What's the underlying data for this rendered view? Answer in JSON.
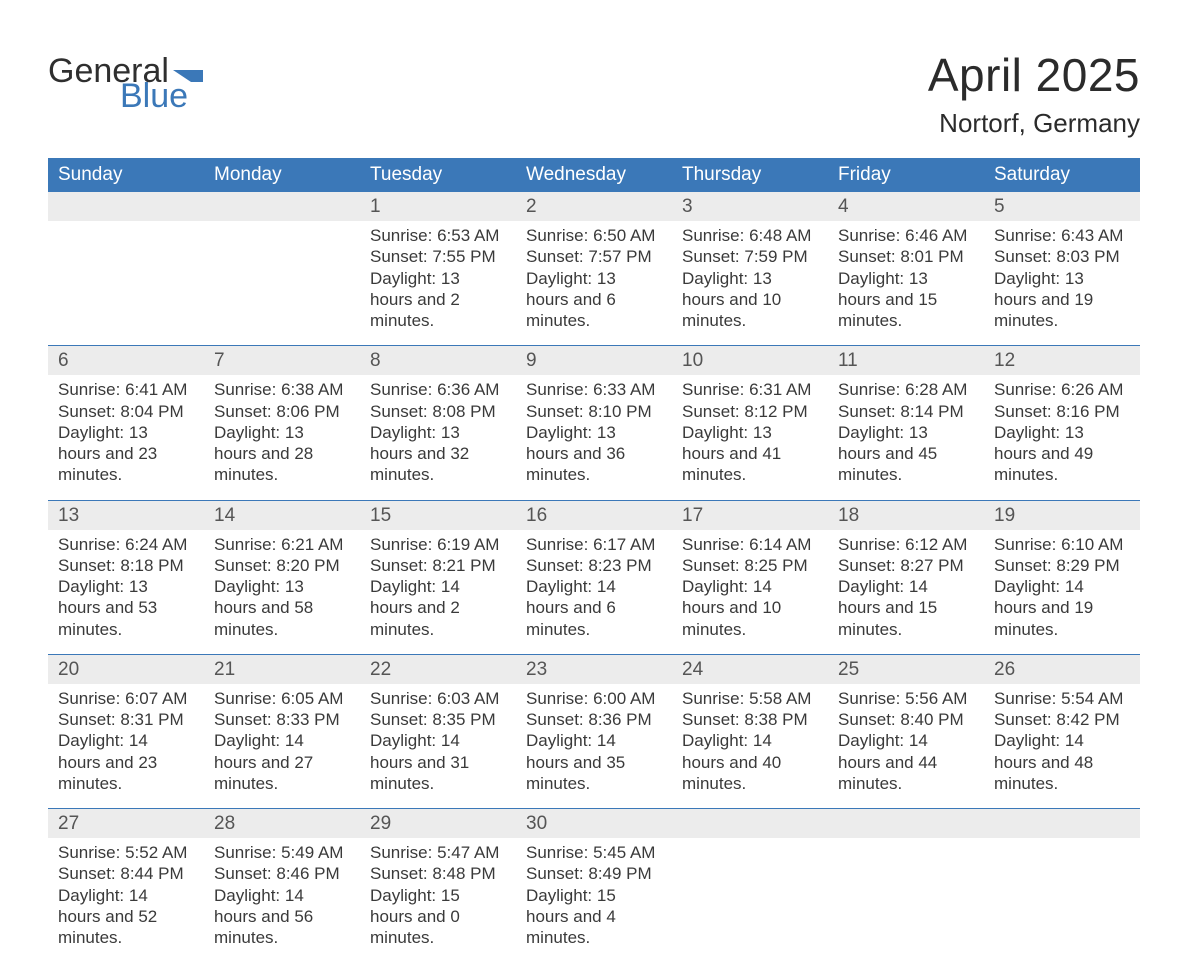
{
  "brand": {
    "word1": "General",
    "word2": "Blue",
    "flag_color": "#3b78b8"
  },
  "title": {
    "month": "April 2025",
    "location": "Nortorf, Germany"
  },
  "colors": {
    "header_bg": "#3b78b8",
    "row_divider": "#3b78b8",
    "daynum_bg": "#ececec",
    "text": "#2c2c2c",
    "brand_blue": "#3b78b8"
  },
  "weekdays": [
    "Sunday",
    "Monday",
    "Tuesday",
    "Wednesday",
    "Thursday",
    "Friday",
    "Saturday"
  ],
  "labels": {
    "sunrise": "Sunrise",
    "sunset": "Sunset",
    "daylight": "Daylight"
  },
  "layout": {
    "columns": 7,
    "rows": 5,
    "first_weekday_index": 2
  },
  "days": [
    {
      "n": 1,
      "sunrise": "6:53 AM",
      "sunset": "7:55 PM",
      "daylight": "13 hours and 2 minutes."
    },
    {
      "n": 2,
      "sunrise": "6:50 AM",
      "sunset": "7:57 PM",
      "daylight": "13 hours and 6 minutes."
    },
    {
      "n": 3,
      "sunrise": "6:48 AM",
      "sunset": "7:59 PM",
      "daylight": "13 hours and 10 minutes."
    },
    {
      "n": 4,
      "sunrise": "6:46 AM",
      "sunset": "8:01 PM",
      "daylight": "13 hours and 15 minutes."
    },
    {
      "n": 5,
      "sunrise": "6:43 AM",
      "sunset": "8:03 PM",
      "daylight": "13 hours and 19 minutes."
    },
    {
      "n": 6,
      "sunrise": "6:41 AM",
      "sunset": "8:04 PM",
      "daylight": "13 hours and 23 minutes."
    },
    {
      "n": 7,
      "sunrise": "6:38 AM",
      "sunset": "8:06 PM",
      "daylight": "13 hours and 28 minutes."
    },
    {
      "n": 8,
      "sunrise": "6:36 AM",
      "sunset": "8:08 PM",
      "daylight": "13 hours and 32 minutes."
    },
    {
      "n": 9,
      "sunrise": "6:33 AM",
      "sunset": "8:10 PM",
      "daylight": "13 hours and 36 minutes."
    },
    {
      "n": 10,
      "sunrise": "6:31 AM",
      "sunset": "8:12 PM",
      "daylight": "13 hours and 41 minutes."
    },
    {
      "n": 11,
      "sunrise": "6:28 AM",
      "sunset": "8:14 PM",
      "daylight": "13 hours and 45 minutes."
    },
    {
      "n": 12,
      "sunrise": "6:26 AM",
      "sunset": "8:16 PM",
      "daylight": "13 hours and 49 minutes."
    },
    {
      "n": 13,
      "sunrise": "6:24 AM",
      "sunset": "8:18 PM",
      "daylight": "13 hours and 53 minutes."
    },
    {
      "n": 14,
      "sunrise": "6:21 AM",
      "sunset": "8:20 PM",
      "daylight": "13 hours and 58 minutes."
    },
    {
      "n": 15,
      "sunrise": "6:19 AM",
      "sunset": "8:21 PM",
      "daylight": "14 hours and 2 minutes."
    },
    {
      "n": 16,
      "sunrise": "6:17 AM",
      "sunset": "8:23 PM",
      "daylight": "14 hours and 6 minutes."
    },
    {
      "n": 17,
      "sunrise": "6:14 AM",
      "sunset": "8:25 PM",
      "daylight": "14 hours and 10 minutes."
    },
    {
      "n": 18,
      "sunrise": "6:12 AM",
      "sunset": "8:27 PM",
      "daylight": "14 hours and 15 minutes."
    },
    {
      "n": 19,
      "sunrise": "6:10 AM",
      "sunset": "8:29 PM",
      "daylight": "14 hours and 19 minutes."
    },
    {
      "n": 20,
      "sunrise": "6:07 AM",
      "sunset": "8:31 PM",
      "daylight": "14 hours and 23 minutes."
    },
    {
      "n": 21,
      "sunrise": "6:05 AM",
      "sunset": "8:33 PM",
      "daylight": "14 hours and 27 minutes."
    },
    {
      "n": 22,
      "sunrise": "6:03 AM",
      "sunset": "8:35 PM",
      "daylight": "14 hours and 31 minutes."
    },
    {
      "n": 23,
      "sunrise": "6:00 AM",
      "sunset": "8:36 PM",
      "daylight": "14 hours and 35 minutes."
    },
    {
      "n": 24,
      "sunrise": "5:58 AM",
      "sunset": "8:38 PM",
      "daylight": "14 hours and 40 minutes."
    },
    {
      "n": 25,
      "sunrise": "5:56 AM",
      "sunset": "8:40 PM",
      "daylight": "14 hours and 44 minutes."
    },
    {
      "n": 26,
      "sunrise": "5:54 AM",
      "sunset": "8:42 PM",
      "daylight": "14 hours and 48 minutes."
    },
    {
      "n": 27,
      "sunrise": "5:52 AM",
      "sunset": "8:44 PM",
      "daylight": "14 hours and 52 minutes."
    },
    {
      "n": 28,
      "sunrise": "5:49 AM",
      "sunset": "8:46 PM",
      "daylight": "14 hours and 56 minutes."
    },
    {
      "n": 29,
      "sunrise": "5:47 AM",
      "sunset": "8:48 PM",
      "daylight": "15 hours and 0 minutes."
    },
    {
      "n": 30,
      "sunrise": "5:45 AM",
      "sunset": "8:49 PM",
      "daylight": "15 hours and 4 minutes."
    }
  ]
}
